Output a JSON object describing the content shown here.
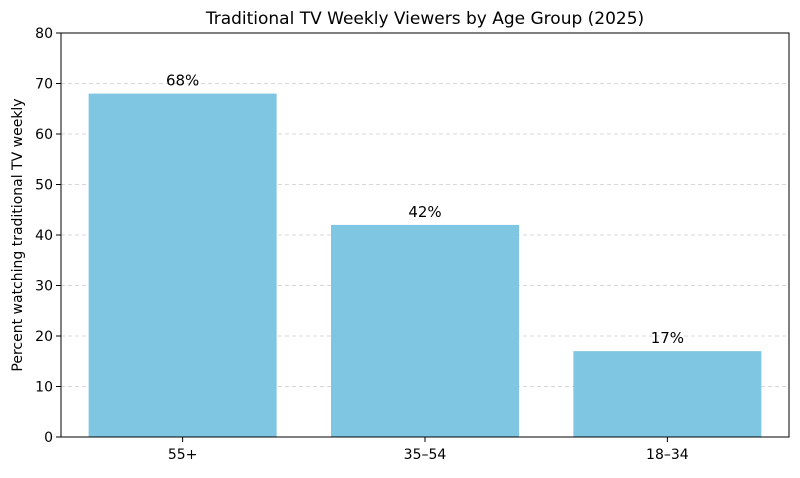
{
  "chart_data": {
    "type": "bar",
    "title": "Traditional TV Weekly Viewers by Age Group (2025)",
    "xlabel": "",
    "ylabel": "Percent watching traditional TV weekly",
    "categories": [
      "55+",
      "35–54",
      "18–34"
    ],
    "values": [
      68,
      42,
      17
    ],
    "data_labels": [
      "68%",
      "42%",
      "17%"
    ],
    "ylim": [
      0,
      80
    ],
    "yticks": [
      0,
      10,
      20,
      30,
      40,
      50,
      60,
      70,
      80
    ],
    "grid": "y, dashed",
    "bar_color": "#7EC6E2"
  }
}
